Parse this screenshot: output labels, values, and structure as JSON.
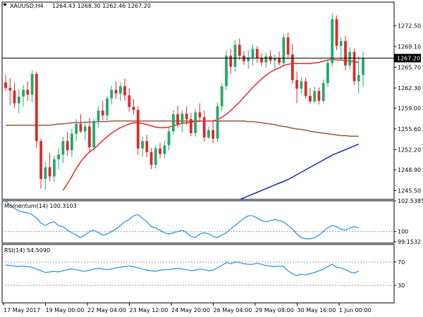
{
  "chart_data": {
    "type": "candlestick",
    "symbol": "XAUUSD,H4",
    "ohlc_header": "1264.43 1268.30 1262.46 1267.20",
    "current_price": 1267.2,
    "colors": {
      "up": "#26a86b",
      "down": "#d92b2b",
      "price_line": "#000000",
      "sma_fast": "#e8262a",
      "sma_mid": "#9a5a36",
      "sma_slow": "#1a28b8",
      "momentum": "#1e8fe8",
      "rsi": "#1e8fe8",
      "current_label_bg": "#000000",
      "current_label_text": "#ffffff"
    },
    "price_axis": {
      "ylim": [
        1244.05,
        1276.38
      ],
      "ticks": [
        1272.5,
        1269.1,
        1265.7,
        1262.3,
        1259.0,
        1255.6,
        1252.2,
        1248.9,
        1245.5
      ]
    },
    "x_axis": {
      "ticks": [
        "17 May 2017",
        "19 May 00:00",
        "22 May 04:00",
        "23 May 12:00",
        "24 May 20:00",
        "26 May 04:00",
        "29 May 08:00",
        "30 May 16:00",
        "1 Jun 00:00"
      ]
    },
    "candles": [
      {
        "o": 1263.2,
        "h": 1264.5,
        "l": 1261.8,
        "c": 1262.3
      },
      {
        "o": 1262.3,
        "h": 1263.9,
        "l": 1259.5,
        "c": 1261.9
      },
      {
        "o": 1261.9,
        "h": 1263.2,
        "l": 1259.0,
        "c": 1259.8
      },
      {
        "o": 1259.8,
        "h": 1262.1,
        "l": 1258.2,
        "c": 1260.9
      },
      {
        "o": 1260.9,
        "h": 1262.8,
        "l": 1259.3,
        "c": 1262.0
      },
      {
        "o": 1262.0,
        "h": 1263.4,
        "l": 1260.2,
        "c": 1261.2
      },
      {
        "o": 1261.2,
        "h": 1265.2,
        "l": 1259.9,
        "c": 1264.6
      },
      {
        "o": 1264.6,
        "h": 1265.0,
        "l": 1252.5,
        "c": 1253.6
      },
      {
        "o": 1253.6,
        "h": 1254.0,
        "l": 1245.8,
        "c": 1247.4
      },
      {
        "o": 1247.4,
        "h": 1250.2,
        "l": 1245.6,
        "c": 1249.3
      },
      {
        "o": 1249.3,
        "h": 1251.6,
        "l": 1247.0,
        "c": 1247.8
      },
      {
        "o": 1247.8,
        "h": 1251.2,
        "l": 1246.9,
        "c": 1250.6
      },
      {
        "o": 1250.6,
        "h": 1252.4,
        "l": 1249.0,
        "c": 1251.4
      },
      {
        "o": 1251.4,
        "h": 1254.3,
        "l": 1250.0,
        "c": 1253.6
      },
      {
        "o": 1253.6,
        "h": 1255.1,
        "l": 1251.2,
        "c": 1252.1
      },
      {
        "o": 1252.1,
        "h": 1255.6,
        "l": 1251.0,
        "c": 1254.8
      },
      {
        "o": 1254.8,
        "h": 1257.2,
        "l": 1253.6,
        "c": 1256.4
      },
      {
        "o": 1256.4,
        "h": 1258.0,
        "l": 1254.9,
        "c": 1255.2
      },
      {
        "o": 1255.2,
        "h": 1256.8,
        "l": 1253.8,
        "c": 1256.0
      },
      {
        "o": 1256.0,
        "h": 1257.4,
        "l": 1251.8,
        "c": 1252.6
      },
      {
        "o": 1252.6,
        "h": 1257.2,
        "l": 1252.0,
        "c": 1256.9
      },
      {
        "o": 1256.9,
        "h": 1259.3,
        "l": 1255.8,
        "c": 1258.6
      },
      {
        "o": 1258.6,
        "h": 1260.2,
        "l": 1257.0,
        "c": 1257.8
      },
      {
        "o": 1257.8,
        "h": 1261.0,
        "l": 1257.0,
        "c": 1260.6
      },
      {
        "o": 1260.6,
        "h": 1262.7,
        "l": 1259.6,
        "c": 1262.0
      },
      {
        "o": 1262.0,
        "h": 1263.4,
        "l": 1260.5,
        "c": 1261.4
      },
      {
        "o": 1261.4,
        "h": 1263.2,
        "l": 1260.2,
        "c": 1262.6
      },
      {
        "o": 1262.6,
        "h": 1263.8,
        "l": 1260.2,
        "c": 1261.1
      },
      {
        "o": 1261.1,
        "h": 1262.3,
        "l": 1258.4,
        "c": 1259.2
      },
      {
        "o": 1259.2,
        "h": 1260.5,
        "l": 1258.0,
        "c": 1258.7
      },
      {
        "o": 1258.7,
        "h": 1259.3,
        "l": 1251.3,
        "c": 1252.4
      },
      {
        "o": 1252.4,
        "h": 1254.3,
        "l": 1251.1,
        "c": 1253.6
      },
      {
        "o": 1253.6,
        "h": 1254.6,
        "l": 1251.0,
        "c": 1251.8
      },
      {
        "o": 1251.8,
        "h": 1252.5,
        "l": 1249.0,
        "c": 1249.7
      },
      {
        "o": 1249.7,
        "h": 1252.9,
        "l": 1249.1,
        "c": 1252.4
      },
      {
        "o": 1252.4,
        "h": 1253.3,
        "l": 1250.8,
        "c": 1251.5
      },
      {
        "o": 1251.5,
        "h": 1253.6,
        "l": 1250.8,
        "c": 1252.9
      },
      {
        "o": 1252.9,
        "h": 1255.8,
        "l": 1252.1,
        "c": 1255.2
      },
      {
        "o": 1255.2,
        "h": 1258.7,
        "l": 1254.6,
        "c": 1258.0
      },
      {
        "o": 1258.0,
        "h": 1259.4,
        "l": 1255.8,
        "c": 1256.4
      },
      {
        "o": 1256.4,
        "h": 1258.6,
        "l": 1255.0,
        "c": 1258.1
      },
      {
        "o": 1258.1,
        "h": 1259.3,
        "l": 1256.2,
        "c": 1257.2
      },
      {
        "o": 1257.2,
        "h": 1258.2,
        "l": 1254.4,
        "c": 1254.9
      },
      {
        "o": 1254.9,
        "h": 1258.9,
        "l": 1254.3,
        "c": 1258.3
      },
      {
        "o": 1258.3,
        "h": 1259.8,
        "l": 1256.7,
        "c": 1257.5
      },
      {
        "o": 1257.5,
        "h": 1258.6,
        "l": 1253.5,
        "c": 1254.2
      },
      {
        "o": 1254.2,
        "h": 1256.0,
        "l": 1253.9,
        "c": 1255.4
      },
      {
        "o": 1255.4,
        "h": 1257.0,
        "l": 1253.2,
        "c": 1254.0
      },
      {
        "o": 1254.0,
        "h": 1259.9,
        "l": 1253.4,
        "c": 1259.3
      },
      {
        "o": 1259.3,
        "h": 1263.1,
        "l": 1258.5,
        "c": 1262.6
      },
      {
        "o": 1262.6,
        "h": 1268.4,
        "l": 1262.0,
        "c": 1267.6
      },
      {
        "o": 1267.6,
        "h": 1268.7,
        "l": 1264.6,
        "c": 1265.8
      },
      {
        "o": 1265.8,
        "h": 1270.2,
        "l": 1265.0,
        "c": 1269.4
      },
      {
        "o": 1269.4,
        "h": 1270.4,
        "l": 1266.9,
        "c": 1267.6
      },
      {
        "o": 1267.6,
        "h": 1268.3,
        "l": 1266.1,
        "c": 1266.7
      },
      {
        "o": 1266.7,
        "h": 1268.5,
        "l": 1265.5,
        "c": 1267.3
      },
      {
        "o": 1267.3,
        "h": 1269.4,
        "l": 1266.0,
        "c": 1268.7
      },
      {
        "o": 1268.7,
        "h": 1269.2,
        "l": 1266.4,
        "c": 1267.2
      },
      {
        "o": 1267.2,
        "h": 1268.0,
        "l": 1265.9,
        "c": 1266.5
      },
      {
        "o": 1266.5,
        "h": 1268.1,
        "l": 1265.6,
        "c": 1267.5
      },
      {
        "o": 1267.5,
        "h": 1268.5,
        "l": 1266.2,
        "c": 1266.8
      },
      {
        "o": 1266.8,
        "h": 1267.8,
        "l": 1265.4,
        "c": 1267.2
      },
      {
        "o": 1267.2,
        "h": 1268.3,
        "l": 1266.0,
        "c": 1266.4
      },
      {
        "o": 1266.4,
        "h": 1271.2,
        "l": 1265.8,
        "c": 1270.6
      },
      {
        "o": 1270.6,
        "h": 1271.4,
        "l": 1267.0,
        "c": 1267.8
      },
      {
        "o": 1267.8,
        "h": 1269.5,
        "l": 1263.0,
        "c": 1263.6
      },
      {
        "o": 1263.6,
        "h": 1265.0,
        "l": 1259.8,
        "c": 1262.2
      },
      {
        "o": 1262.2,
        "h": 1264.1,
        "l": 1261.4,
        "c": 1263.4
      },
      {
        "o": 1263.4,
        "h": 1264.0,
        "l": 1260.6,
        "c": 1261.0
      },
      {
        "o": 1261.0,
        "h": 1262.3,
        "l": 1259.7,
        "c": 1260.1
      },
      {
        "o": 1260.1,
        "h": 1262.5,
        "l": 1259.8,
        "c": 1261.8
      },
      {
        "o": 1261.8,
        "h": 1262.4,
        "l": 1259.6,
        "c": 1260.2
      },
      {
        "o": 1260.2,
        "h": 1263.7,
        "l": 1259.8,
        "c": 1263.1
      },
      {
        "o": 1263.1,
        "h": 1267.0,
        "l": 1262.5,
        "c": 1266.4
      },
      {
        "o": 1266.4,
        "h": 1274.5,
        "l": 1265.8,
        "c": 1273.6
      },
      {
        "o": 1273.6,
        "h": 1274.2,
        "l": 1268.5,
        "c": 1269.2
      },
      {
        "o": 1269.2,
        "h": 1270.6,
        "l": 1266.8,
        "c": 1270.0
      },
      {
        "o": 1270.0,
        "h": 1270.8,
        "l": 1265.2,
        "c": 1266.0
      },
      {
        "o": 1266.0,
        "h": 1268.9,
        "l": 1265.4,
        "c": 1268.2
      },
      {
        "o": 1268.2,
        "h": 1268.8,
        "l": 1262.8,
        "c": 1263.4
      },
      {
        "o": 1263.4,
        "h": 1267.5,
        "l": 1261.4,
        "c": 1264.43
      },
      {
        "o": 1264.43,
        "h": 1268.3,
        "l": 1262.46,
        "c": 1267.2
      }
    ],
    "sma_fast": [
      null,
      null,
      null,
      null,
      null,
      null,
      null,
      null,
      null,
      null,
      null,
      null,
      null,
      1245.5,
      1246.6,
      1247.8,
      1249.1,
      1250.2,
      1251.1,
      1251.8,
      1252.3,
      1253.0,
      1253.7,
      1254.3,
      1254.9,
      1255.4,
      1255.8,
      1256.1,
      1256.4,
      1256.6,
      1256.6,
      1256.5,
      1256.3,
      1256.1,
      1255.9,
      1255.8,
      1255.8,
      1255.9,
      1256.1,
      1256.3,
      1256.5,
      1256.6,
      1256.7,
      1256.8,
      1256.9,
      1256.9,
      1256.9,
      1256.9,
      1257.1,
      1257.5,
      1258.0,
      1258.6,
      1259.3,
      1260.0,
      1260.8,
      1261.6,
      1262.4,
      1263.1,
      1263.8,
      1264.4,
      1264.9,
      1265.3,
      1265.6,
      1266.0,
      1266.2,
      1266.3,
      1266.3,
      1266.3,
      1266.3,
      1266.3,
      1266.4,
      1266.5,
      1266.7,
      1266.9,
      1267.0,
      1266.9,
      1266.9,
      1266.8,
      1266.7,
      1266.6,
      1266.5
    ],
    "sma_mid": [
      1256.2,
      1256.2,
      1256.2,
      1256.2,
      1256.2,
      1256.2,
      1256.2,
      1256.2,
      1256.2,
      1256.2,
      1256.2,
      1256.3,
      1256.4,
      1256.4,
      1256.5,
      1256.6,
      1256.6,
      1256.6,
      1256.7,
      1256.7,
      1256.7,
      1256.8,
      1256.8,
      1256.8,
      1256.9,
      1256.9,
      1256.9,
      1256.9,
      1256.9,
      1256.9,
      1256.9,
      1256.9,
      1256.9,
      1256.9,
      1256.9,
      1256.9,
      1256.9,
      1256.9,
      1256.9,
      1256.9,
      1256.9,
      1256.9,
      1256.9,
      1256.9,
      1256.9,
      1256.9,
      1256.9,
      1256.9,
      1256.9,
      1256.9,
      1256.9,
      1256.9,
      1256.9,
      1256.9,
      1256.9,
      1256.8,
      1256.8,
      1256.7,
      1256.6,
      1256.5,
      1256.4,
      1256.3,
      1256.1,
      1256.0,
      1255.9,
      1255.7,
      1255.6,
      1255.5,
      1255.4,
      1255.2,
      1255.1,
      1255.0,
      1254.9,
      1254.8,
      1254.7,
      1254.6,
      1254.5,
      1254.5,
      1254.4,
      1254.4,
      1254.4
    ],
    "sma_slow_start_index": 53,
    "sma_slow": [
      1244.0,
      1244.3,
      1244.6,
      1244.9,
      1245.2,
      1245.5,
      1245.8,
      1246.1,
      1246.4,
      1246.7,
      1247.0,
      1247.3,
      1247.7,
      1248.1,
      1248.5,
      1248.9,
      1249.3,
      1249.7,
      1250.1,
      1250.5,
      1250.9,
      1251.3,
      1251.6,
      1251.9,
      1252.2,
      1252.5,
      1252.8,
      1253.1
    ],
    "momentum": {
      "label": "Momentum(14) 100.3103",
      "ylim": [
        99.05,
        102.5385
      ],
      "ticks": [
        "102.5385",
        "100",
        "99.1532"
      ],
      "reference": 100,
      "values": [
        102.5,
        102.2,
        101.9,
        101.7,
        101.6,
        101.55,
        101.4,
        101.1,
        100.7,
        100.5,
        100.7,
        100.8,
        100.5,
        100.4,
        100.1,
        99.9,
        99.7,
        99.5,
        99.7,
        100.0,
        100.1,
        99.9,
        99.7,
        99.8,
        100.0,
        100.2,
        100.5,
        100.8,
        101.0,
        101.3,
        101.4,
        101.1,
        100.8,
        100.4,
        100.3,
        100.1,
        99.9,
        99.8,
        99.9,
        100.0,
        100.1,
        99.9,
        99.6,
        99.5,
        99.8,
        99.9,
        99.8,
        99.6,
        99.5,
        99.7,
        99.9,
        100.2,
        100.5,
        100.8,
        101.1,
        101.3,
        101.3,
        101.1,
        100.9,
        100.8,
        100.9,
        101.0,
        100.9,
        100.8,
        100.5,
        100.2,
        99.8,
        99.5,
        99.4,
        99.4,
        99.5,
        99.7,
        100.0,
        100.3,
        100.5,
        100.4,
        100.2,
        100.1,
        100.3,
        100.4,
        100.3103
      ]
    },
    "rsi": {
      "label": "RSI(14) 54.5090",
      "ylim": [
        0,
        100
      ],
      "ticks": [
        "70",
        "30"
      ],
      "levels": [
        70,
        30
      ],
      "values": [
        65,
        64,
        63,
        62,
        63,
        62,
        61,
        58,
        55,
        52,
        53,
        54,
        53,
        55,
        57,
        58,
        57,
        55,
        54,
        56,
        58,
        59,
        58,
        57,
        58,
        60,
        61,
        62,
        63,
        62,
        60,
        58,
        56,
        55,
        54,
        56,
        57,
        57,
        58,
        59,
        58,
        57,
        55,
        56,
        58,
        57,
        55,
        56,
        60,
        64,
        69,
        67,
        70,
        69,
        67,
        66,
        66,
        68,
        66,
        64,
        63,
        62,
        63,
        62,
        55,
        50,
        47,
        49,
        48,
        50,
        52,
        55,
        58,
        62,
        66,
        61,
        60,
        57,
        53,
        51,
        54.509
      ]
    }
  }
}
